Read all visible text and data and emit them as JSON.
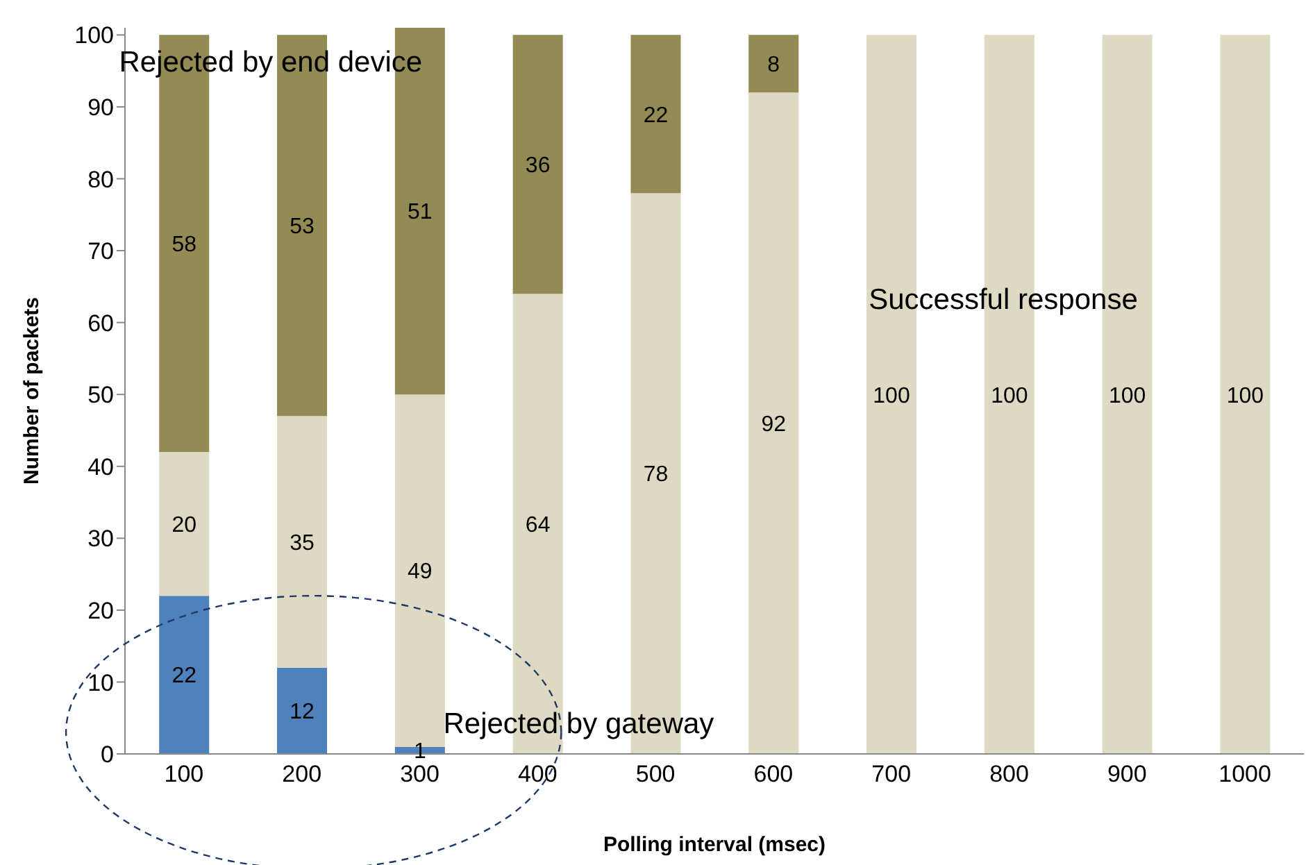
{
  "chart_data": {
    "type": "bar",
    "stacked": true,
    "xlabel": "Polling interval (msec)",
    "ylabel": "Number of packets",
    "categories": [
      "100",
      "200",
      "300",
      "400",
      "500",
      "600",
      "700",
      "800",
      "900",
      "1000"
    ],
    "series": [
      {
        "name": "Rejected by gateway",
        "color": "#4f81bd",
        "values": [
          22,
          12,
          1,
          null,
          null,
          null,
          null,
          null,
          null,
          null
        ]
      },
      {
        "name": "Successful response",
        "color": "#ddd9c3",
        "values": [
          20,
          35,
          49,
          64,
          78,
          92,
          100,
          100,
          100,
          100
        ]
      },
      {
        "name": "Rejected by end device",
        "color": "#948a54",
        "values": [
          58,
          53,
          51,
          36,
          22,
          8,
          null,
          null,
          null,
          null
        ]
      }
    ],
    "ylim": [
      0,
      101
    ],
    "yticks": [
      0,
      10,
      20,
      30,
      40,
      50,
      60,
      70,
      80,
      90,
      100
    ],
    "grid": false,
    "legend": false,
    "data_labels": true
  }
}
